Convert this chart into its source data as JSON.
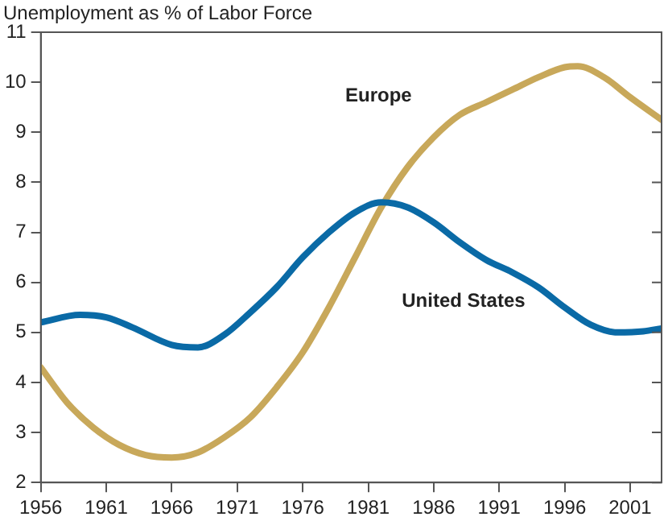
{
  "chart_data": {
    "type": "line",
    "ylabel": "Unemployment as % of Labor Force",
    "xlim": [
      1956,
      2003.4
    ],
    "xticks": [
      1956,
      1961,
      1966,
      1971,
      1976,
      1981,
      1986,
      1991,
      1996,
      2001
    ],
    "ylim": [
      2,
      11
    ],
    "yticks": [
      2,
      3,
      4,
      5,
      6,
      7,
      8,
      9,
      10,
      11
    ],
    "grid": false,
    "legend": false,
    "marker": "none",
    "line_style": "solid",
    "series": [
      {
        "name": "United States",
        "color": "#0a6aa6",
        "x": [
          1956,
          1959,
          1961,
          1963,
          1966,
          1968,
          1970,
          1972,
          1974,
          1976,
          1978,
          1980,
          1982,
          1984,
          1986,
          1988,
          1990,
          1992,
          1994,
          1996,
          1998,
          2000,
          2002,
          2003.4
        ],
        "values": [
          5.2,
          5.35,
          5.3,
          5.1,
          4.75,
          4.7,
          4.95,
          5.4,
          5.9,
          6.5,
          7.0,
          7.4,
          7.6,
          7.5,
          7.2,
          6.8,
          6.45,
          6.2,
          5.9,
          5.5,
          5.15,
          5.0,
          5.02,
          5.08
        ]
      },
      {
        "name": "Europe",
        "color": "#c8a85a",
        "x": [
          1956,
          1958,
          1960,
          1962,
          1964,
          1966,
          1968,
          1970,
          1972,
          1974,
          1976,
          1978,
          1980,
          1982,
          1984,
          1986,
          1988,
          1990,
          1992,
          1994,
          1996,
          1997,
          1999,
          2001,
          2003.4
        ],
        "values": [
          4.3,
          3.6,
          3.1,
          2.75,
          2.55,
          2.5,
          2.6,
          2.9,
          3.3,
          3.9,
          4.6,
          5.5,
          6.5,
          7.5,
          8.3,
          8.9,
          9.35,
          9.6,
          9.85,
          10.1,
          10.3,
          10.32,
          10.1,
          9.7,
          9.25
        ]
      }
    ]
  }
}
